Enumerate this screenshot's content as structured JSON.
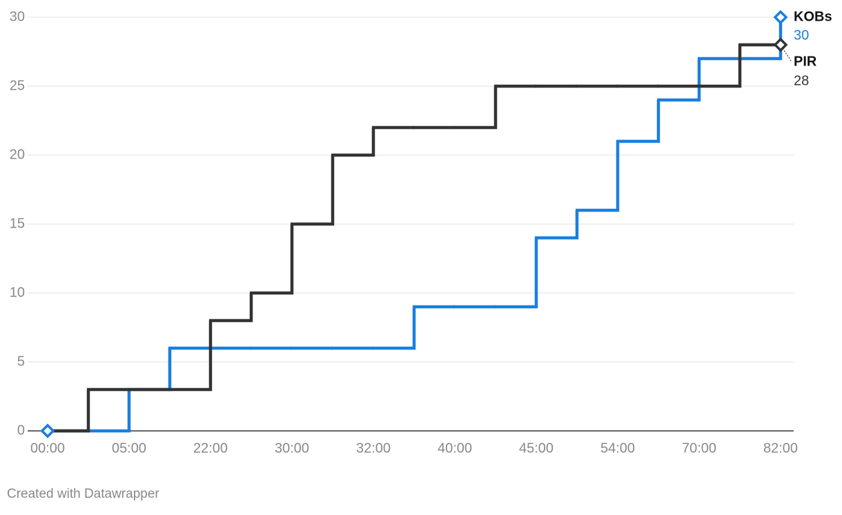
{
  "chart_data": {
    "type": "step",
    "categories": [
      "00:00",
      null,
      "05:00",
      null,
      "22:00",
      null,
      "30:00",
      null,
      "32:00",
      null,
      "40:00",
      null,
      "45:00",
      null,
      "54:00",
      null,
      "70:00",
      null,
      "82:00"
    ],
    "series": [
      {
        "name": "KOBs",
        "color": "#1a7fe0",
        "values": [
          0,
          0,
          3,
          6,
          6,
          6,
          6,
          6,
          6,
          9,
          9,
          9,
          14,
          16,
          21,
          24,
          27,
          27,
          30
        ]
      },
      {
        "name": "PIR",
        "color": "#333333",
        "values": [
          0,
          3,
          3,
          3,
          8,
          10,
          15,
          20,
          22,
          22,
          22,
          25,
          25,
          25,
          25,
          25,
          25,
          28,
          28
        ]
      }
    ],
    "ylim": [
      0,
      30
    ],
    "yticks": [
      0,
      5,
      10,
      15,
      20,
      25,
      30
    ],
    "grid": true,
    "footer": "Created with Datawrapper"
  }
}
